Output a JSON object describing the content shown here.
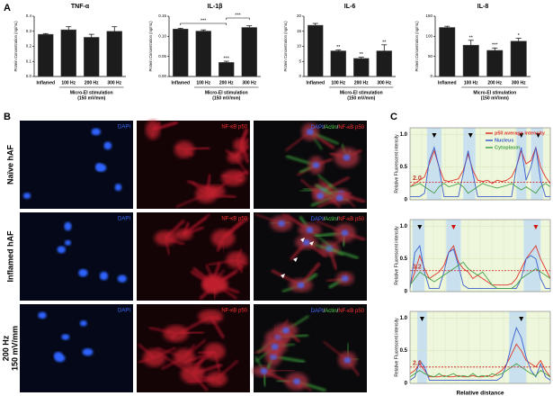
{
  "panel_labels": [
    "A",
    "B",
    "C"
  ],
  "chart_data": [
    {
      "type": "bar",
      "title": "TNF-α",
      "ylabel": "Protein Concentration (ng/mL)",
      "xlabel": "Micro-EI stimulation",
      "xlabel2": "(150 mV/mm)",
      "categories": [
        "Inflamed",
        "100 Hz",
        "200 Hz",
        "300 Hz"
      ],
      "values": [
        0.28,
        0.31,
        0.26,
        0.3
      ],
      "errors": [
        0.005,
        0.02,
        0.02,
        0.03
      ],
      "labels": [
        null,
        null,
        null,
        null
      ],
      "color": "#1c1c1c",
      "ylim": [
        0,
        0.4
      ],
      "yticks": [
        {
          "value": 0,
          "label": "0.0"
        },
        0.1,
        0.2,
        0.3,
        0.4
      ]
    },
    {
      "type": "bar",
      "title": "IL-1β",
      "ylabel": "Protein Concentration (ng/mL)",
      "xlabel": "Micro-EI stimulation",
      "xlabel2": "(150 mV/mm)",
      "categories": [
        "Inflamed",
        "100 Hz",
        "200 Hz",
        "300 Hz"
      ],
      "values": [
        0.118,
        0.113,
        0.035,
        0.122
      ],
      "errors": [
        0.002,
        0.003,
        0.003,
        0.004
      ],
      "labels": [
        null,
        null,
        "***",
        null
      ],
      "color": "#1c1c1c",
      "brackets": [
        {
          "text": "***",
          "between": [
            "Inflamed",
            "200 Hz"
          ]
        },
        {
          "text": "***",
          "between": [
            "200 Hz",
            "300 Hz"
          ]
        }
      ],
      "ylim": [
        0,
        0.15
      ],
      "yticks": [
        {
          "value": 0,
          "label": "0.00"
        },
        0.05,
        {
          "value": 0.1,
          "label": "0.10"
        },
        0.15
      ]
    },
    {
      "type": "bar",
      "title": "IL-6",
      "ylabel": "Protein Concentration (ng/mL)",
      "xlabel": "Micro-EI stimulation",
      "xlabel2": "(150 mV/mm)",
      "categories": [
        "Inflamed",
        "100 Hz",
        "200 Hz",
        "300 Hz"
      ],
      "values": [
        17,
        8.5,
        6,
        8.5
      ],
      "errors": [
        0.6,
        0.3,
        0.4,
        2
      ],
      "labels": [
        null,
        "**",
        "**",
        "**"
      ],
      "color": "#1c1c1c",
      "ylim": [
        0,
        20
      ],
      "yticks": [
        0,
        5,
        10,
        15,
        20
      ]
    },
    {
      "type": "bar",
      "title": "IL-8",
      "ylabel": "Protein Concentration (ng/mL)",
      "xlabel": "Micro-EI stimulation",
      "xlabel2": "(150 mV/mm)",
      "categories": [
        "Inflamed",
        "100 Hz",
        "200 Hz",
        "300 Hz"
      ],
      "values": [
        122,
        78,
        65,
        88
      ],
      "errors": [
        3,
        12,
        6,
        7
      ],
      "labels": [
        null,
        "**",
        "***",
        "*"
      ],
      "color": "#1c1c1c",
      "ylim": [
        0,
        150
      ],
      "yticks": [
        0,
        50,
        100,
        150
      ]
    },
    {
      "type": "line",
      "ylabel": "Relative Fluorescent intensity",
      "ylim": [
        0,
        1.1
      ],
      "yticks": [
        0,
        0.5,
        {
          "value": 1,
          "label": "1.0"
        }
      ],
      "threshold": 0.27,
      "threshold_label": "2.0",
      "legend": "upper right",
      "series": [
        {
          "name": "p50 average intensity",
          "color": "#e0342a",
          "values": [
            0.2,
            0.25,
            0.3,
            0.35,
            0.55,
            0.75,
            0.5,
            0.3,
            0.28,
            0.3,
            0.32,
            0.45,
            0.7,
            0.45,
            0.3,
            0.28,
            0.3,
            0.25,
            0.3,
            0.28,
            0.3,
            0.35,
            0.5,
            0.75,
            0.55,
            0.6,
            0.8,
            0.5,
            0.35,
            0.25
          ]
        },
        {
          "name": "Nucleus",
          "color": "#3a5fcd",
          "values": [
            0.05,
            0.05,
            0.05,
            0.1,
            0.6,
            0.8,
            0.5,
            0.05,
            0.05,
            0.05,
            0.05,
            0.4,
            0.75,
            0.4,
            0.05,
            0.05,
            0.05,
            0.05,
            0.05,
            0.05,
            0.05,
            0.05,
            0.5,
            0.8,
            0.3,
            0.5,
            0.8,
            0.3,
            0.05,
            0.05
          ]
        },
        {
          "name": "Cytoplasm",
          "color": "#43a047",
          "values": [
            0.2,
            0.22,
            0.25,
            0.2,
            0.15,
            0.1,
            0.2,
            0.25,
            0.2,
            0.22,
            0.25,
            0.2,
            0.1,
            0.15,
            0.2,
            0.25,
            0.22,
            0.2,
            0.18,
            0.2,
            0.22,
            0.25,
            0.2,
            0.15,
            0.2,
            0.15,
            0.1,
            0.2,
            0.25,
            0.2
          ]
        }
      ]
    },
    {
      "type": "line",
      "ylabel": "Relative Fluorescent intensity",
      "ylim": [
        0,
        1.1
      ],
      "yticks": [
        0,
        0.5,
        {
          "value": 1,
          "label": "1.0"
        }
      ],
      "threshold": 0.32,
      "threshold_label": "3.2",
      "series": [
        {
          "name": "p50 average intensity",
          "color": "#e0342a",
          "values": [
            0.1,
            0.3,
            0.55,
            0.35,
            0.2,
            0.25,
            0.3,
            0.4,
            0.6,
            0.7,
            0.45,
            0.35,
            0.3,
            0.2,
            0.25,
            0.2,
            0.15,
            0.1,
            0.1,
            0.1,
            0.1,
            0.12,
            0.2,
            0.35,
            0.5,
            0.6,
            0.7,
            0.5,
            0.35,
            0.2
          ]
        },
        {
          "name": "Nucleus",
          "color": "#3a5fcd",
          "values": [
            0.05,
            0.6,
            0.7,
            0.3,
            0.05,
            0.05,
            0.05,
            0.3,
            0.6,
            0.65,
            0.4,
            0.1,
            0.05,
            0.05,
            0.05,
            0.05,
            0.05,
            0.05,
            0.05,
            0.05,
            0.05,
            0.05,
            0.05,
            0.2,
            0.5,
            0.55,
            0.5,
            0.2,
            0.05,
            0.05
          ]
        },
        {
          "name": "Cytoplasm",
          "color": "#43a047",
          "values": [
            0.1,
            0.2,
            0.3,
            0.25,
            0.2,
            0.15,
            0.2,
            0.25,
            0.3,
            0.35,
            0.4,
            0.45,
            0.35,
            0.3,
            0.25,
            0.3,
            0.2,
            0.1,
            0.05,
            0.05,
            0.05,
            0.05,
            0.1,
            0.2,
            0.25,
            0.3,
            0.35,
            0.3,
            0.25,
            0.2
          ]
        }
      ]
    },
    {
      "type": "line",
      "ylabel": "Relative Fluorescent intensity",
      "xlabel": "Relative distance",
      "ylim": [
        0,
        1.1
      ],
      "yticks": [
        0,
        0.5,
        {
          "value": 1,
          "label": "1.0"
        }
      ],
      "threshold": 0.25,
      "threshold_label": "2.0",
      "series": [
        {
          "name": "p50 average intensity",
          "color": "#e0342a",
          "values": [
            0.15,
            0.2,
            0.3,
            0.2,
            0.1,
            0.1,
            0.1,
            0.12,
            0.1,
            0.1,
            0.12,
            0.1,
            0.1,
            0.12,
            0.1,
            0.1,
            0.12,
            0.1,
            0.15,
            0.2,
            0.3,
            0.45,
            0.6,
            0.5,
            0.35,
            0.3,
            0.25,
            0.35,
            0.2,
            0.1
          ]
        },
        {
          "name": "Nucleus",
          "color": "#3a5fcd",
          "values": [
            0.05,
            0.1,
            0.35,
            0.25,
            0.05,
            0.05,
            0.05,
            0.05,
            0.05,
            0.05,
            0.05,
            0.05,
            0.05,
            0.05,
            0.05,
            0.05,
            0.05,
            0.05,
            0.05,
            0.1,
            0.3,
            0.6,
            0.85,
            0.7,
            0.4,
            0.2,
            0.1,
            0.3,
            0.1,
            0.05
          ]
        },
        {
          "name": "Cytoplasm",
          "color": "#43a047",
          "values": [
            0.1,
            0.15,
            0.2,
            0.15,
            0.12,
            0.1,
            0.15,
            0.1,
            0.12,
            0.15,
            0.1,
            0.12,
            0.1,
            0.15,
            0.1,
            0.12,
            0.1,
            0.15,
            0.12,
            0.15,
            0.2,
            0.25,
            0.3,
            0.25,
            0.2,
            0.15,
            0.12,
            0.2,
            0.15,
            0.1
          ]
        }
      ]
    }
  ],
  "images": {
    "columns": [
      "DAPI",
      "NF-κB p50",
      [
        "DAPI",
        "/",
        "Actin",
        "/",
        "NF-κB p50"
      ]
    ],
    "rows": [
      [
        "Naïve hAF"
      ],
      [
        "Inflamed hAF"
      ],
      [
        "200 Hz",
        "150 mV/mm"
      ]
    ]
  }
}
